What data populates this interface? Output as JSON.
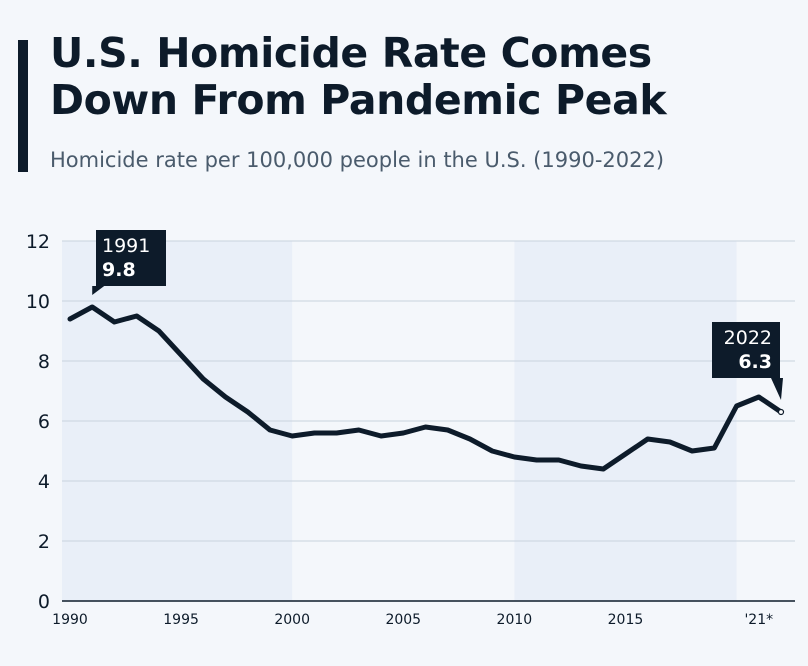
{
  "header": {
    "title": "U.S. Homicide Rate Comes Down From Pandemic Peak",
    "subtitle": "Homicide rate per 100,000 people in the U.S. (1990-2022)"
  },
  "chart_data": {
    "type": "line",
    "title": "U.S. Homicide Rate Comes Down From Pandemic Peak",
    "subtitle": "Homicide rate per 100,000 people in the U.S. (1990-2022)",
    "xlabel": "",
    "ylabel": "",
    "ylim": [
      0,
      12
    ],
    "xlim": [
      1990,
      2022
    ],
    "yticks": [
      "0",
      "2",
      "4",
      "6",
      "8",
      "10",
      "12"
    ],
    "xticks": [
      {
        "year": 1990,
        "label": "1990"
      },
      {
        "year": 1995,
        "label": "1995"
      },
      {
        "year": 2000,
        "label": "2000"
      },
      {
        "year": 2005,
        "label": "2005"
      },
      {
        "year": 2010,
        "label": "2010"
      },
      {
        "year": 2015,
        "label": "2015"
      },
      {
        "year": 2021,
        "label": "'21*"
      }
    ],
    "grid": true,
    "shaded_periods": [
      [
        1990,
        2000
      ],
      [
        2010,
        2020
      ]
    ],
    "series": [
      {
        "color": "#0d1b2a",
        "x": [
          1990,
          1991,
          1992,
          1993,
          1994,
          1995,
          1996,
          1997,
          1998,
          1999,
          2000,
          2001,
          2002,
          2003,
          2004,
          2005,
          2006,
          2007,
          2008,
          2009,
          2010,
          2011,
          2012,
          2013,
          2014,
          2015,
          2016,
          2017,
          2018,
          2019,
          2020,
          2021,
          2022
        ],
        "y": [
          9.4,
          9.8,
          9.3,
          9.5,
          9.0,
          8.2,
          7.4,
          6.8,
          6.3,
          5.7,
          5.5,
          5.6,
          5.6,
          5.7,
          5.5,
          5.6,
          5.8,
          5.7,
          5.4,
          5.0,
          4.8,
          4.7,
          4.7,
          4.5,
          4.4,
          4.9,
          5.4,
          5.3,
          5.0,
          5.1,
          6.5,
          6.8,
          6.3
        ]
      }
    ],
    "annotations": [
      {
        "year_label": "1991",
        "value": "9.8",
        "x": 1991,
        "y": 9.8
      },
      {
        "year_label": "2022",
        "value": "6.3",
        "x": 2022,
        "y": 6.3
      }
    ],
    "colors": {
      "line": "#0d1b2a",
      "shade": "#e9eff8",
      "grid": "#c9d3de",
      "background": "#f4f7fb"
    }
  }
}
